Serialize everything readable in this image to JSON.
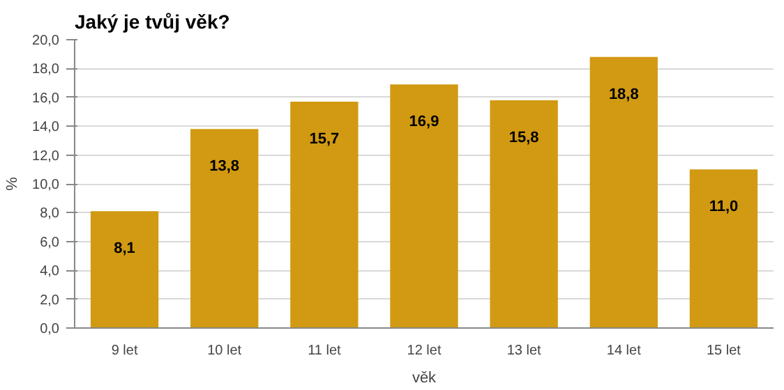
{
  "chart_data": {
    "type": "bar",
    "title": "Jaký je tvůj věk?",
    "xlabel": "věk",
    "ylabel": "%",
    "categories": [
      "9 let",
      "10 let",
      "11 let",
      "12 let",
      "13 let",
      "14 let",
      "15 let"
    ],
    "values": [
      8.1,
      13.8,
      15.7,
      16.9,
      15.8,
      18.8,
      11.0
    ],
    "value_labels": [
      "8,1",
      "13,8",
      "15,7",
      "16,9",
      "15,8",
      "18,8",
      "11,0"
    ],
    "color": "#d19a12",
    "ylim": [
      0,
      20
    ],
    "yticks": [
      {
        "value": 0,
        "label": "0,0"
      },
      {
        "value": 2,
        "label": "2,0"
      },
      {
        "value": 4,
        "label": "4,0"
      },
      {
        "value": 6,
        "label": "6,0"
      },
      {
        "value": 8,
        "label": "8,0"
      },
      {
        "value": 10,
        "label": "10,0"
      },
      {
        "value": 12,
        "label": "12,0"
      },
      {
        "value": 14,
        "label": "14,0"
      },
      {
        "value": 16,
        "label": "16,0"
      },
      {
        "value": 18,
        "label": "18,0"
      },
      {
        "value": 20,
        "label": "20,0"
      }
    ],
    "grid": "y"
  }
}
